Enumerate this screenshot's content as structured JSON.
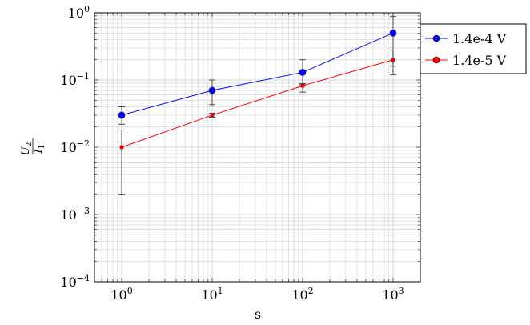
{
  "chart_data": {
    "type": "line",
    "xscale": "log",
    "yscale": "log",
    "xlabel": "s",
    "ylabel": {
      "numerator": "U",
      "numerator_sub": "2",
      "denominator": "I",
      "denominator_sub": "1"
    },
    "xlim": [
      0.5,
      2000
    ],
    "ylim": [
      0.0001,
      1
    ],
    "grid": true,
    "legend_position": "outside-top-right",
    "x_ticks": [
      {
        "value": 1,
        "base": "10",
        "exp": "0"
      },
      {
        "value": 10,
        "base": "10",
        "exp": "1"
      },
      {
        "value": 100,
        "base": "10",
        "exp": "2"
      },
      {
        "value": 1000,
        "base": "10",
        "exp": "3"
      }
    ],
    "y_ticks": [
      {
        "value": 0.0001,
        "base": "10",
        "exp": "−4"
      },
      {
        "value": 0.001,
        "base": "10",
        "exp": "−3"
      },
      {
        "value": 0.01,
        "base": "10",
        "exp": "−2"
      },
      {
        "value": 0.1,
        "base": "10",
        "exp": "−1"
      },
      {
        "value": 1,
        "base": "10",
        "exp": "0"
      }
    ],
    "x": [
      1,
      10,
      100,
      1000
    ],
    "series": [
      {
        "name": "1.4e-4  V",
        "color": "#0000ff",
        "marker": "circle",
        "values": [
          0.03,
          0.07,
          0.13,
          0.5
        ],
        "err_low": [
          0.022,
          0.043,
          0.085,
          0.16
        ],
        "err_high": [
          0.04,
          0.1,
          0.2,
          0.88
        ]
      },
      {
        "name": "1.4e-5  V",
        "color": "#ff0000",
        "marker": "square",
        "values": [
          0.01,
          0.03,
          0.082,
          0.2
        ],
        "err_low": [
          0.002,
          0.028,
          0.066,
          0.12
        ],
        "err_high": [
          0.018,
          0.032,
          0.088,
          0.28
        ]
      }
    ]
  }
}
